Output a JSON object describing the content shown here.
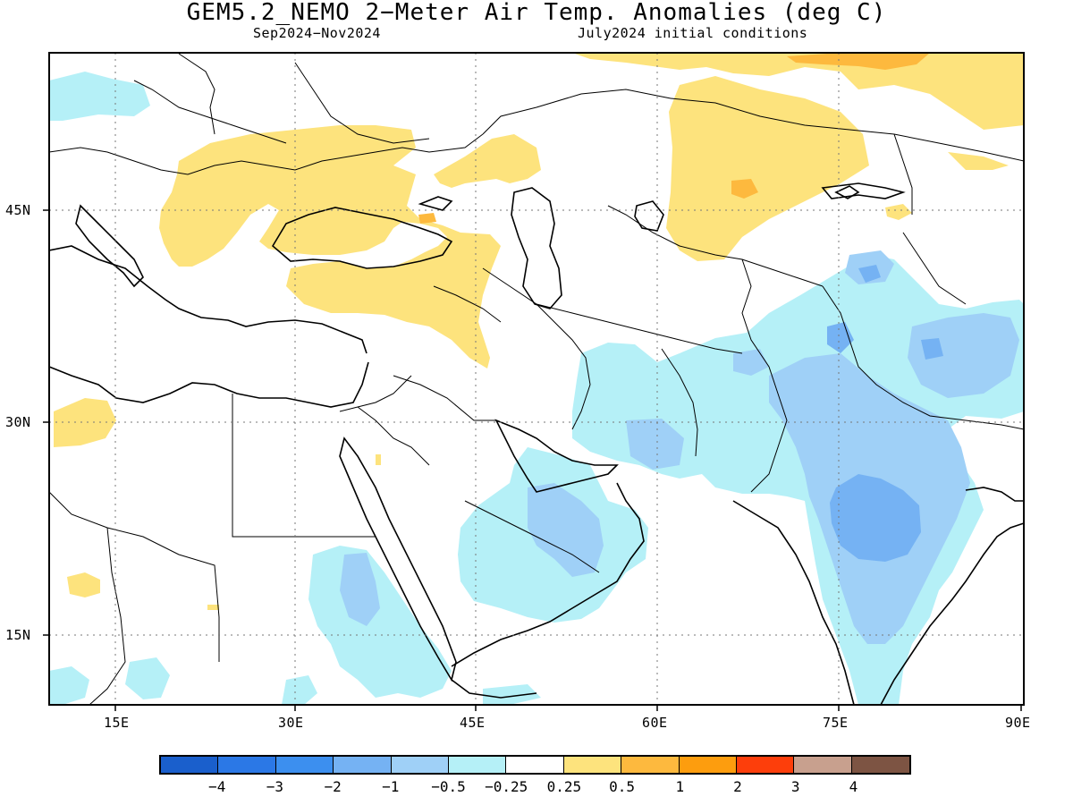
{
  "title": "GEM5.2_NEMO 2−Meter Air Temp. Anomalies (deg C)",
  "subtitle_left": "Sep2024−Nov2024",
  "subtitle_right": "July2024 initial conditions",
  "map_data": {
    "region": "Europe / Middle East / South Asia",
    "lon_range": [
      10,
      90
    ],
    "lat_range": [
      10,
      55
    ],
    "lon_ticks": [
      "15E",
      "30E",
      "45E",
      "60E",
      "75E",
      "90E"
    ],
    "lat_ticks": [
      "45N",
      "30N",
      "15N"
    ],
    "gridlines": "dotted",
    "variable": "2-meter air temperature anomaly",
    "units": "deg C"
  },
  "colorbar": {
    "colors": [
      "#1a5fcc",
      "#2b78e6",
      "#3c8fef",
      "#75b2f3",
      "#9fd0f7",
      "#b5f0f7",
      "#ffffff",
      "#fde37d",
      "#fdb93e",
      "#fd9d0e",
      "#fd3e0b",
      "#c8a08e",
      "#7d5443"
    ],
    "labels": [
      "−4",
      "−3",
      "−2",
      "−1",
      "−0.5",
      "−0.25",
      "0.25",
      "0.5",
      "1",
      "2",
      "3",
      "4"
    ]
  }
}
